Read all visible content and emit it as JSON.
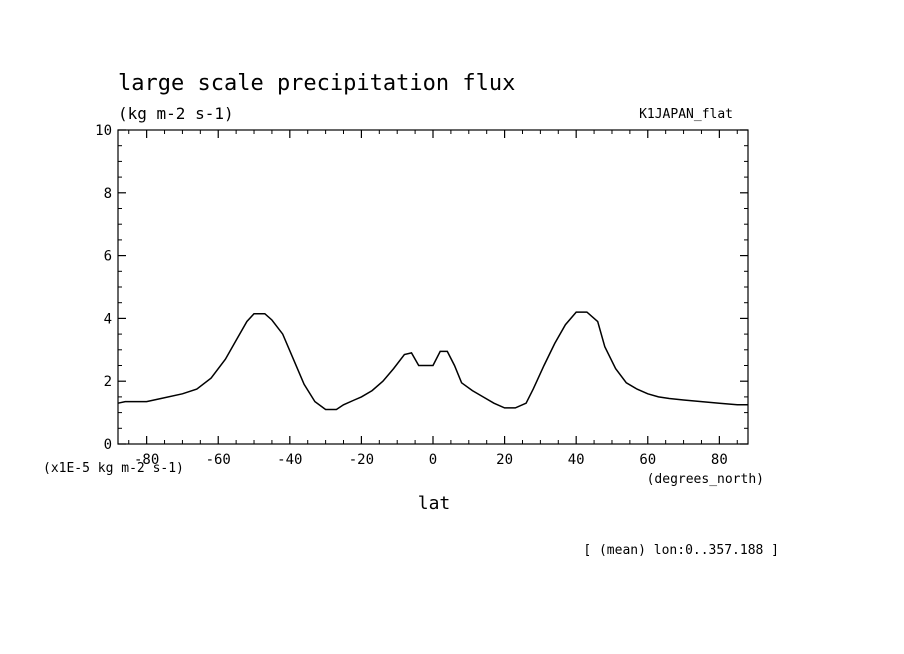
{
  "chart_data": {
    "type": "line",
    "title": "large scale precipitation flux",
    "units_label": "(kg m-2 s-1)",
    "dataset_label": "K1JAPAN_flat",
    "xlabel": "lat",
    "x_units": "(degrees_north)",
    "y_scale_label": "(x1E-5 kg m-2 s-1)",
    "footer_note": "[ (mean) lon:0..357.188 ]",
    "xlim": [
      -88,
      88
    ],
    "ylim": [
      0,
      10
    ],
    "x_ticks": [
      -80,
      -60,
      -40,
      -20,
      0,
      20,
      40,
      60,
      80
    ],
    "x_tick_labels": [
      "-80",
      "-60",
      "-40",
      "-20",
      "0",
      "20",
      "40",
      "60",
      "80"
    ],
    "y_ticks": [
      0,
      2,
      4,
      6,
      8,
      10
    ],
    "y_tick_labels": [
      "0",
      "2",
      "4",
      "6",
      "8",
      "10"
    ],
    "grid": false,
    "series": [
      {
        "x": [
          -88,
          -86,
          -80,
          -76,
          -70,
          -66,
          -62,
          -58,
          -55,
          -52,
          -50,
          -47,
          -45,
          -42,
          -39,
          -36,
          -33,
          -30,
          -27,
          -25,
          -22,
          -20,
          -17,
          -14,
          -11,
          -8,
          -6,
          -4,
          -2,
          0,
          2,
          4,
          6,
          8,
          11,
          14,
          17,
          20,
          23,
          26,
          28,
          31,
          34,
          37,
          40,
          43,
          46,
          48,
          51,
          54,
          57,
          60,
          63,
          66,
          70,
          75,
          80,
          85,
          88
        ],
        "y": [
          1.3,
          1.35,
          1.35,
          1.45,
          1.6,
          1.75,
          2.1,
          2.7,
          3.3,
          3.9,
          4.15,
          4.15,
          3.95,
          3.5,
          2.7,
          1.9,
          1.35,
          1.1,
          1.1,
          1.25,
          1.4,
          1.5,
          1.7,
          2.0,
          2.4,
          2.85,
          2.9,
          2.5,
          2.5,
          2.5,
          2.95,
          2.95,
          2.5,
          1.95,
          1.7,
          1.5,
          1.3,
          1.15,
          1.15,
          1.3,
          1.75,
          2.5,
          3.2,
          3.8,
          4.2,
          4.2,
          3.9,
          3.1,
          2.4,
          1.95,
          1.75,
          1.6,
          1.5,
          1.45,
          1.4,
          1.35,
          1.3,
          1.25,
          1.25
        ]
      }
    ]
  }
}
